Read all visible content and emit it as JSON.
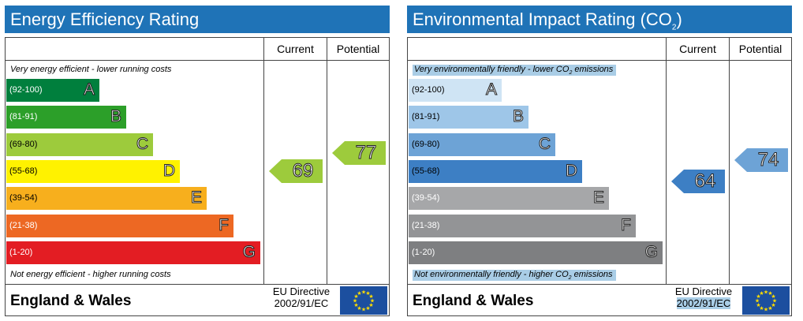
{
  "colors": {
    "title_bar": "#1f73b7",
    "eu_flag_blue": "#1c4f9f",
    "eu_flag_stars": "#ffdd00",
    "caption_highlight": "#a9cde6"
  },
  "chart_data": [
    {
      "type": "bar",
      "title": "Energy Efficiency Rating",
      "columns": [
        "Current",
        "Potential"
      ],
      "top_caption": "Very energy efficient - lower running costs",
      "bottom_caption": "Not energy efficient - higher running costs",
      "bands": [
        {
          "letter": "A",
          "range": "(92-100)",
          "color": "#007f3d"
        },
        {
          "letter": "B",
          "range": "(81-91)",
          "color": "#2c9f29"
        },
        {
          "letter": "C",
          "range": "(69-80)",
          "color": "#9dcb3c"
        },
        {
          "letter": "D",
          "range": "(55-68)",
          "color": "#fff200"
        },
        {
          "letter": "E",
          "range": "(39-54)",
          "color": "#f7af1d"
        },
        {
          "letter": "F",
          "range": "(21-38)",
          "color": "#ed6823"
        },
        {
          "letter": "G",
          "range": "(1-20)",
          "color": "#e31d23"
        }
      ],
      "current": {
        "value": 69,
        "band": "C",
        "color": "#9dcb3c"
      },
      "potential": {
        "value": 77,
        "band": "C",
        "color": "#9dcb3c"
      },
      "region": "England & Wales",
      "directive_line1": "EU Directive",
      "directive_line2": "2002/91/EC"
    },
    {
      "type": "bar",
      "title_main": "Environmental Impact Rating (CO",
      "title_sub": "2",
      "title_end": ")",
      "columns": [
        "Current",
        "Potential"
      ],
      "top_caption_pre": "Very environmentally friendly - lower CO",
      "top_caption_sub": "2",
      "top_caption_post": " emissions",
      "bottom_caption_pre": "Not environmentally friendly - higher CO",
      "bottom_caption_sub": "2",
      "bottom_caption_post": " emissions",
      "bands": [
        {
          "letter": "A",
          "range": "(92-100)",
          "color": "#cfe4f4"
        },
        {
          "letter": "B",
          "range": "(81-91)",
          "color": "#9ec6e8"
        },
        {
          "letter": "C",
          "range": "(69-80)",
          "color": "#6da3d6"
        },
        {
          "letter": "D",
          "range": "(55-68)",
          "color": "#3d7fc4"
        },
        {
          "letter": "E",
          "range": "(39-54)",
          "color": "#a6a7a9"
        },
        {
          "letter": "F",
          "range": "(21-38)",
          "color": "#939496"
        },
        {
          "letter": "G",
          "range": "(1-20)",
          "color": "#7e7f81"
        }
      ],
      "current": {
        "value": 64,
        "band": "D",
        "color": "#3d7fc4"
      },
      "potential": {
        "value": 74,
        "band": "C",
        "color": "#6da3d6"
      },
      "region": "England & Wales",
      "directive_line1": "EU Directive",
      "directive_line2": "2002/91/EC"
    }
  ]
}
